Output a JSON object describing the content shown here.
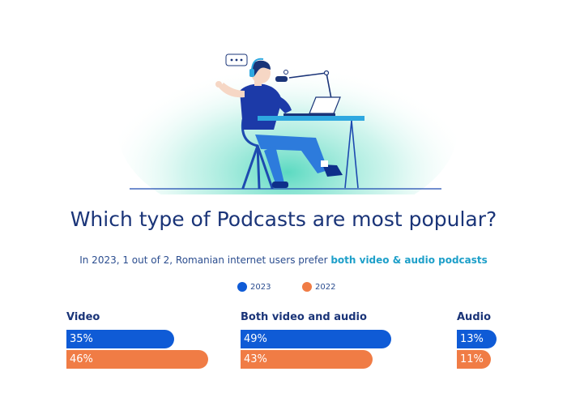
{
  "chart_data": {
    "type": "bar",
    "title": "Which type of Podcasts are most popular?",
    "subtitle_plain": "In 2023, 1 out of 2, Romanian internet users prefer ",
    "subtitle_bold": "both video & audio podcasts",
    "legend_placement": "top-center",
    "categories": [
      "Video",
      "Both video and audio",
      "Audio"
    ],
    "series": [
      {
        "name": "2023",
        "color": "#0f5bd6",
        "values": [
          35,
          49,
          13
        ],
        "labels": [
          "35%",
          "49%",
          "13%"
        ]
      },
      {
        "name": "2022",
        "color": "#f07c45",
        "values": [
          46,
          43,
          11
        ],
        "labels": [
          "46%",
          "43%",
          "11%"
        ]
      }
    ],
    "unit": "%"
  }
}
